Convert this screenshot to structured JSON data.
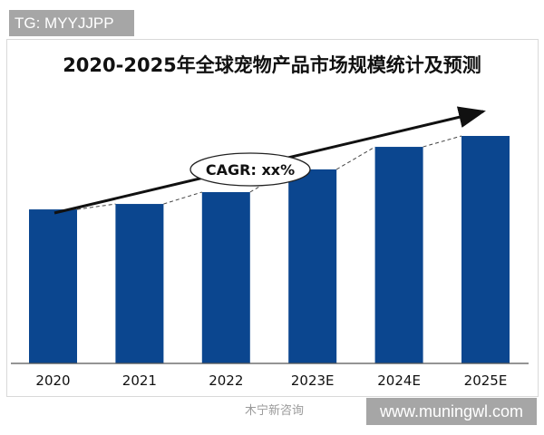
{
  "overlay": {
    "tag": "TG: MYYJJPP",
    "site": "www.muningwl.com",
    "watermark": "木宁新咨询"
  },
  "chart_data": {
    "type": "bar",
    "title": "2020-2025年全球宠物产品市场规模统计及预测",
    "categories": [
      "2020",
      "2021",
      "2022",
      "2023E",
      "2024E",
      "2025E"
    ],
    "values": [
      67.7,
      70.1,
      75.3,
      85.3,
      95.2,
      100
    ],
    "value_note": "relative bar heights (2025E = 100); no y-axis printed",
    "annotation": "CAGR: xx%",
    "bar_color": "#0b468f",
    "trend_arrow": true,
    "dashed_connectors": true,
    "grid": false,
    "ylim": [
      0,
      100
    ]
  }
}
